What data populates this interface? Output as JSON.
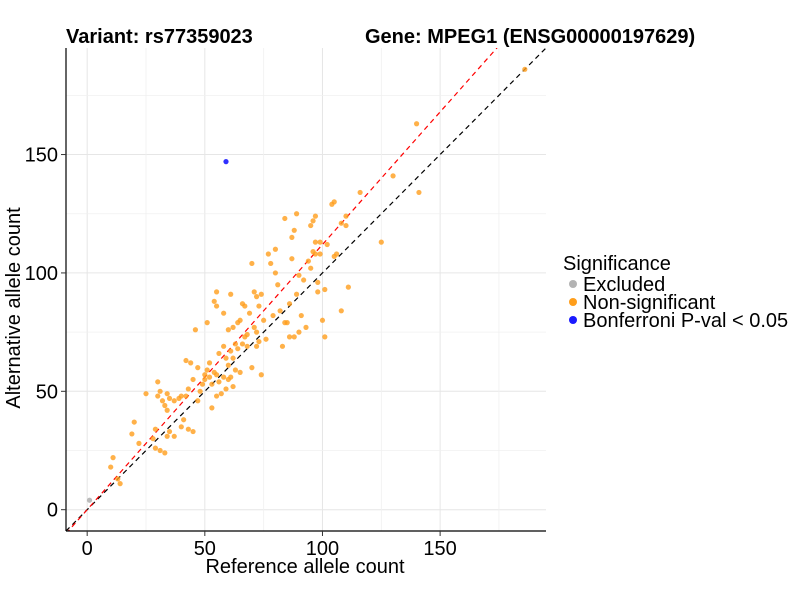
{
  "header": {
    "variant": "Variant: rs77359023",
    "gene": "Gene: MPEG1 (ENSG00000197629)"
  },
  "chart_data": {
    "type": "scatter",
    "xlabel": "Reference allele count",
    "ylabel": "Alternative allele count",
    "xlim": [
      -9,
      195
    ],
    "ylim": [
      -9,
      195
    ],
    "x_ticks": [
      0,
      50,
      100,
      150
    ],
    "y_ticks": [
      0,
      50,
      100,
      150
    ],
    "grid": true,
    "legend": {
      "title": "Significance",
      "position": "right",
      "entries": [
        {
          "label": "Excluded",
          "color": "#b3b3b3"
        },
        {
          "label": "Non-significant",
          "color": "#ff9e1b"
        },
        {
          "label": "Bonferroni P-val < 0.05",
          "color": "#1a1aff"
        }
      ]
    },
    "reference_lines": [
      {
        "name": "y = x",
        "slope": 1.0,
        "intercept": 0,
        "color": "#000000",
        "style": "dashed"
      },
      {
        "name": "fitted",
        "slope": 1.12,
        "intercept": 0,
        "color": "#ff0000",
        "style": "dashed"
      }
    ],
    "series": [
      {
        "name": "Excluded",
        "color": "#b3b3b3",
        "points": [
          [
            1,
            4
          ]
        ]
      },
      {
        "name": "Non-significant",
        "color": "#ff9e1b",
        "points": [
          [
            10,
            18
          ],
          [
            11,
            22
          ],
          [
            14,
            11
          ],
          [
            13,
            13
          ],
          [
            19,
            32
          ],
          [
            20,
            37
          ],
          [
            22,
            28
          ],
          [
            25,
            49
          ],
          [
            28,
            30
          ],
          [
            29,
            34
          ],
          [
            29,
            26
          ],
          [
            30,
            54
          ],
          [
            30,
            48
          ],
          [
            31,
            50
          ],
          [
            31,
            25
          ],
          [
            32,
            46
          ],
          [
            33,
            44
          ],
          [
            33,
            24
          ],
          [
            34,
            49
          ],
          [
            34,
            42
          ],
          [
            34,
            31
          ],
          [
            35,
            33
          ],
          [
            35,
            47
          ],
          [
            37,
            46
          ],
          [
            37,
            31
          ],
          [
            39,
            47
          ],
          [
            40,
            35
          ],
          [
            40,
            48
          ],
          [
            41,
            38
          ],
          [
            42,
            63
          ],
          [
            42,
            48
          ],
          [
            43,
            51
          ],
          [
            43,
            34
          ],
          [
            44,
            62
          ],
          [
            45,
            55
          ],
          [
            45,
            33
          ],
          [
            46,
            76
          ],
          [
            47,
            60
          ],
          [
            47,
            46
          ],
          [
            48,
            50
          ],
          [
            49,
            53
          ],
          [
            50,
            55
          ],
          [
            50,
            57
          ],
          [
            51,
            79
          ],
          [
            51,
            59
          ],
          [
            52,
            62
          ],
          [
            52,
            56
          ],
          [
            53,
            53
          ],
          [
            53,
            43
          ],
          [
            54,
            88
          ],
          [
            54,
            58
          ],
          [
            55,
            86
          ],
          [
            55,
            92
          ],
          [
            55,
            57
          ],
          [
            55,
            48
          ],
          [
            56,
            54
          ],
          [
            56,
            66
          ],
          [
            57,
            49
          ],
          [
            58,
            69
          ],
          [
            58,
            83
          ],
          [
            58,
            56
          ],
          [
            59,
            51
          ],
          [
            59,
            64
          ],
          [
            60,
            61
          ],
          [
            60,
            76
          ],
          [
            60,
            55
          ],
          [
            61,
            67
          ],
          [
            61,
            91
          ],
          [
            61,
            56
          ],
          [
            62,
            52
          ],
          [
            62,
            64
          ],
          [
            62,
            77
          ],
          [
            63,
            59
          ],
          [
            63,
            70
          ],
          [
            64,
            68
          ],
          [
            64,
            79
          ],
          [
            65,
            58
          ],
          [
            65,
            80
          ],
          [
            66,
            87
          ],
          [
            66,
            70
          ],
          [
            67,
            73
          ],
          [
            67,
            86
          ],
          [
            68,
            74
          ],
          [
            68,
            69
          ],
          [
            69,
            83
          ],
          [
            70,
            60
          ],
          [
            70,
            104
          ],
          [
            71,
            77
          ],
          [
            71,
            92
          ],
          [
            72,
            75
          ],
          [
            72,
            90
          ],
          [
            72,
            69
          ],
          [
            73,
            86
          ],
          [
            73,
            71
          ],
          [
            74,
            57
          ],
          [
            74,
            91
          ],
          [
            75,
            80
          ],
          [
            76,
            72
          ],
          [
            77,
            108
          ],
          [
            78,
            104
          ],
          [
            79,
            82
          ],
          [
            80,
            100
          ],
          [
            80,
            110
          ],
          [
            81,
            95
          ],
          [
            82,
            84
          ],
          [
            83,
            69
          ],
          [
            84,
            123
          ],
          [
            84,
            79
          ],
          [
            85,
            79
          ],
          [
            86,
            73
          ],
          [
            86,
            87
          ],
          [
            87,
            106
          ],
          [
            87,
            115
          ],
          [
            88,
            73
          ],
          [
            88,
            118
          ],
          [
            89,
            125
          ],
          [
            89,
            91
          ],
          [
            90,
            99
          ],
          [
            90,
            75
          ],
          [
            91,
            82
          ],
          [
            92,
            97
          ],
          [
            93,
            77
          ],
          [
            94,
            105
          ],
          [
            95,
            102
          ],
          [
            95,
            120
          ],
          [
            96,
            109
          ],
          [
            96,
            122
          ],
          [
            97,
            113
          ],
          [
            97,
            124
          ],
          [
            97,
            108
          ],
          [
            98,
            96
          ],
          [
            98,
            92
          ],
          [
            99,
            113
          ],
          [
            99,
            108
          ],
          [
            100,
            80
          ],
          [
            101,
            93
          ],
          [
            101,
            73
          ],
          [
            102,
            112
          ],
          [
            104,
            129
          ],
          [
            105,
            130
          ],
          [
            105,
            107
          ],
          [
            106,
            108
          ],
          [
            108,
            84
          ],
          [
            108,
            121
          ],
          [
            110,
            124
          ],
          [
            110,
            120
          ],
          [
            111,
            94
          ],
          [
            116,
            134
          ],
          [
            125,
            113
          ],
          [
            130,
            141
          ],
          [
            140,
            163
          ],
          [
            141,
            134
          ],
          [
            186,
            186
          ]
        ]
      },
      {
        "name": "Bonferroni P-val < 0.05",
        "color": "#1a1aff",
        "points": [
          [
            59,
            147
          ]
        ]
      }
    ]
  }
}
